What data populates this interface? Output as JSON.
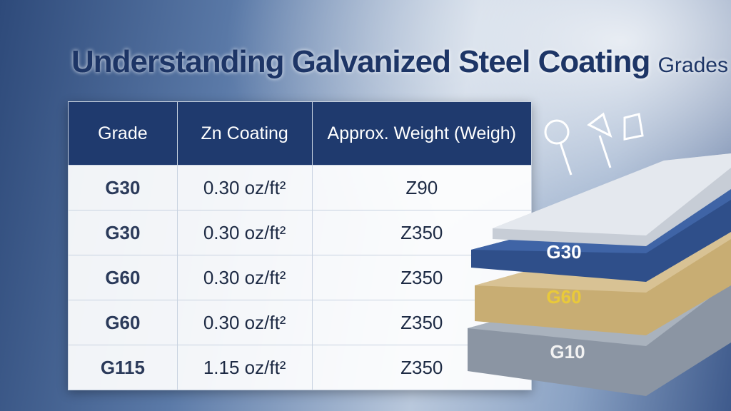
{
  "title": {
    "main": "Understanding Galvanized Steel Coating",
    "suffix": "Grades"
  },
  "table": {
    "headers": [
      "Grade",
      "Zn Coating",
      "Approx. Weight (Weigh)"
    ],
    "rows": [
      [
        "G30",
        "0.30 oz/ft²",
        "Z90"
      ],
      [
        "G30",
        "0.30 oz/ft²",
        "Z350"
      ],
      [
        "G60",
        "0.30 oz/ft²",
        "Z350"
      ],
      [
        "G60",
        "0.30 oz/ft²",
        "Z350"
      ],
      [
        "G115",
        "1.15 oz/ft²",
        "Z350"
      ]
    ]
  },
  "layers": [
    "G30",
    "G60",
    "G10"
  ]
}
